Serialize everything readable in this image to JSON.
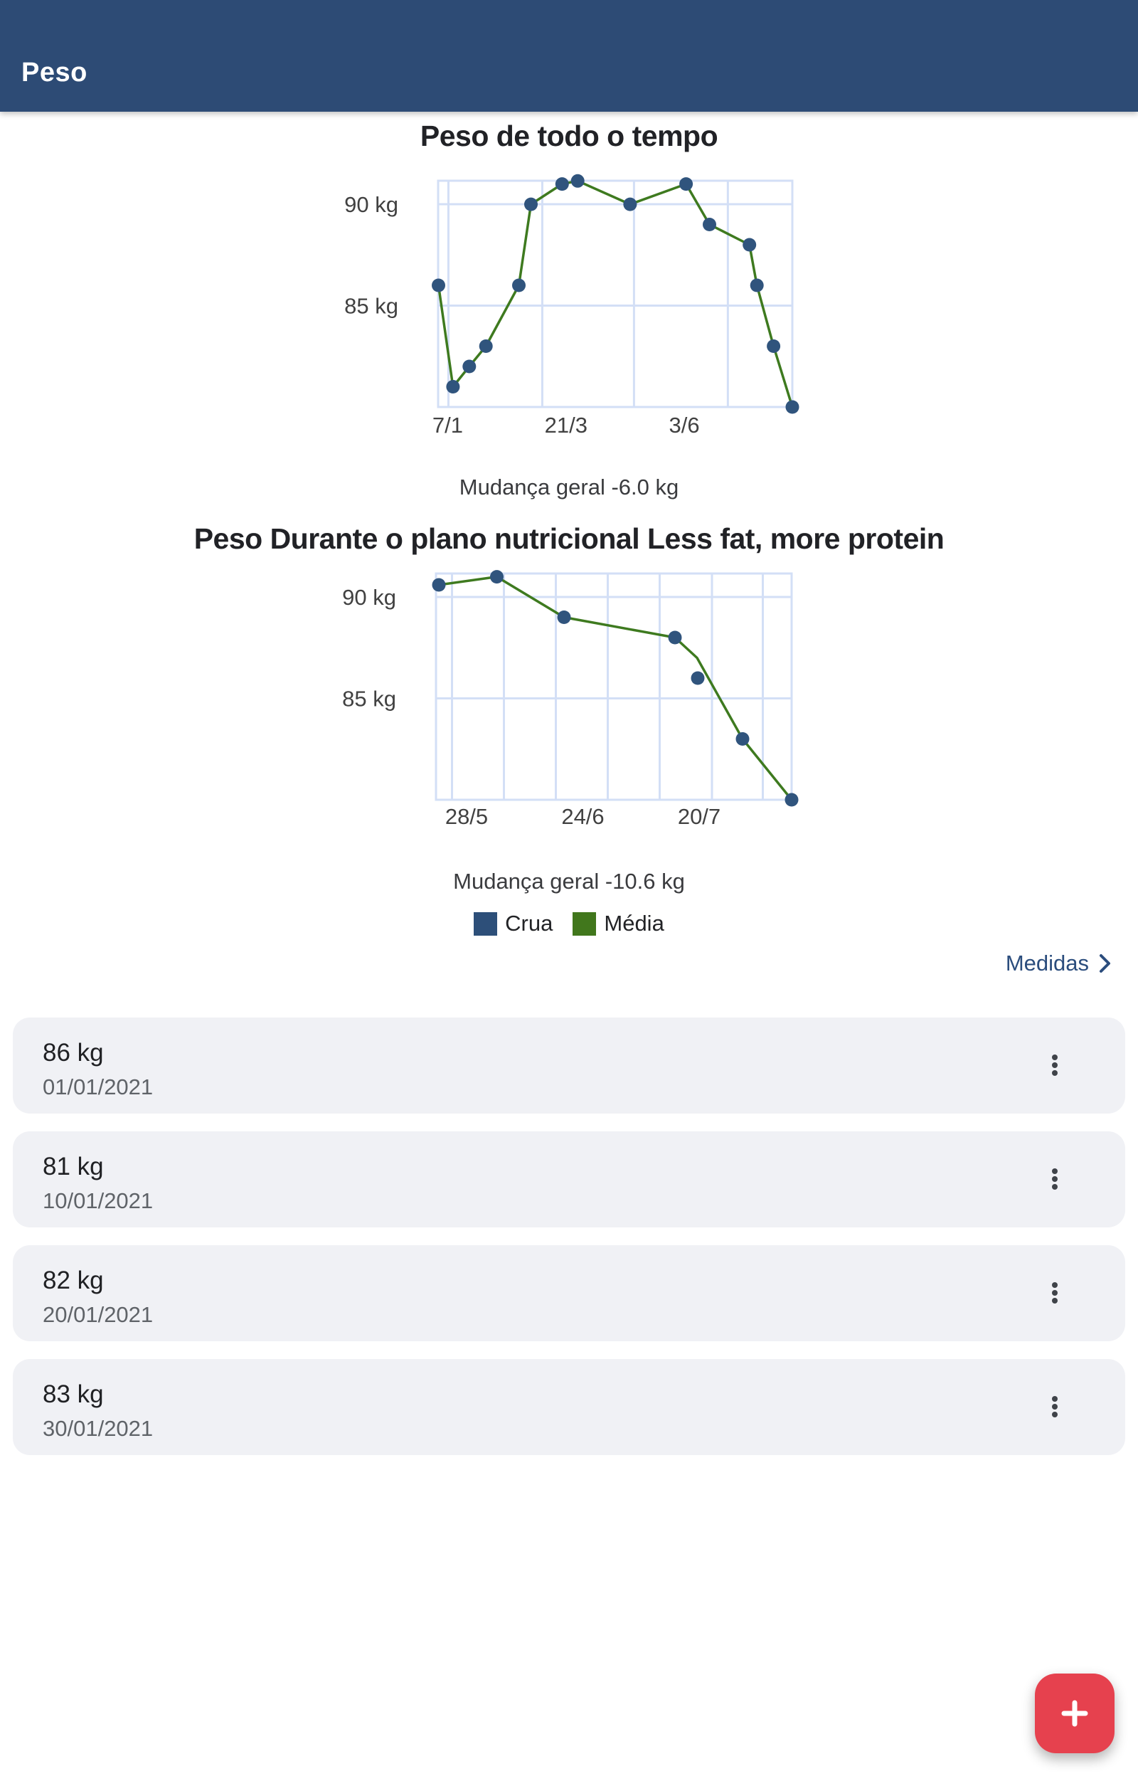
{
  "header": {
    "title": "Peso"
  },
  "colors": {
    "header_bg": "#2d4b75",
    "line_green": "#3e7a1f",
    "point_blue": "#30547d",
    "grid_blue": "#d3dff6",
    "axis_text": "#414141",
    "link_blue": "#2b4d7d",
    "fab_red": "#e6414e",
    "card_bg": "#f0f1f5"
  },
  "chart_data": [
    {
      "type": "line",
      "title": "Peso de todo o tempo",
      "change_label": "Mudança geral -6.0 kg",
      "ylim": [
        80,
        91.16
      ],
      "grid": true,
      "yticks": [
        {
          "kg": 90,
          "label": "90 kg"
        },
        {
          "kg": 85,
          "label": "85 kg"
        }
      ],
      "xticks": [
        {
          "pos": 0.027,
          "label": "7/1"
        },
        {
          "pos": 0.361,
          "label": "21/3"
        },
        {
          "pos": 0.695,
          "label": "3/6"
        }
      ],
      "xgrid": [
        0.029,
        0.294,
        0.553,
        0.818
      ],
      "points": [
        {
          "date": "1/1",
          "kg": 86,
          "x": 0.001
        },
        {
          "date": "10/1",
          "kg": 81,
          "x": 0.042
        },
        {
          "date": "20/1",
          "kg": 82,
          "x": 0.088
        },
        {
          "date": "30/1",
          "kg": 83,
          "x": 0.135
        },
        {
          "date": "20/2",
          "kg": 86,
          "x": 0.228
        },
        {
          "date": "27/2",
          "kg": 90,
          "x": 0.262
        },
        {
          "date": "19/3",
          "kg": 91,
          "x": 0.35
        },
        {
          "date": "28/3",
          "kg": 91.15,
          "x": 0.394
        },
        {
          "date": "30/4",
          "kg": 90,
          "x": 0.542
        },
        {
          "date": "4/6",
          "kg": 91,
          "x": 0.7
        },
        {
          "date": "19/6",
          "kg": 89,
          "x": 0.766
        },
        {
          "date": "13/7",
          "kg": 88,
          "x": 0.879
        },
        {
          "date": "18/7",
          "kg": 86,
          "x": 0.9
        },
        {
          "date": "28/7",
          "kg": 83,
          "x": 0.947
        },
        {
          "date": "9/8",
          "kg": 80,
          "x": 1.0
        }
      ]
    },
    {
      "type": "line",
      "title": "Peso Durante o plano nutricional Less fat, more protein",
      "change_label": "Mudança geral -10.6 kg",
      "ylim": [
        80,
        91.16
      ],
      "grid": true,
      "yticks": [
        {
          "kg": 90,
          "label": "90 kg"
        },
        {
          "kg": 85,
          "label": "85 kg"
        }
      ],
      "xticks": [
        {
          "pos": 0.086,
          "label": "28/5"
        },
        {
          "pos": 0.413,
          "label": "24/6"
        },
        {
          "pos": 0.74,
          "label": "20/7"
        }
      ],
      "xgrid": [
        0.045,
        0.191,
        0.337,
        0.483,
        0.629,
        0.776,
        0.919
      ],
      "points": [
        {
          "date": "21/5",
          "kg": 90.6,
          "x": 0.008
        },
        {
          "date": "4/6",
          "kg": 91,
          "x": 0.171
        },
        {
          "date": "19/6",
          "kg": 89,
          "x": 0.36
        },
        {
          "date": "15/7",
          "kg": 88,
          "x": 0.672
        },
        {
          "date": "20/7",
          "kg": 86,
          "x": 0.736
        },
        {
          "date": "30/7",
          "kg": 83,
          "x": 0.862
        },
        {
          "date": "10/8",
          "kg": 80,
          "x": 1.0
        }
      ],
      "avg_line": [
        {
          "x": 0.008,
          "kg": 90.6
        },
        {
          "x": 0.171,
          "kg": 91
        },
        {
          "x": 0.36,
          "kg": 89
        },
        {
          "x": 0.672,
          "kg": 88
        },
        {
          "x": 0.734,
          "kg": 87
        },
        {
          "x": 0.862,
          "kg": 83
        },
        {
          "x": 1.0,
          "kg": 80
        }
      ]
    }
  ],
  "legend": {
    "items": [
      {
        "label": "Crua",
        "color": "#2d4f79"
      },
      {
        "label": "Média",
        "color": "#41771c"
      }
    ]
  },
  "measurements": {
    "link_label": "Medidas",
    "items": [
      {
        "weight": "86 kg",
        "date": "01/01/2021"
      },
      {
        "weight": "81 kg",
        "date": "10/01/2021"
      },
      {
        "weight": "82 kg",
        "date": "20/01/2021"
      },
      {
        "weight": "83 kg",
        "date": "30/01/2021"
      }
    ]
  },
  "fab": {
    "label": "+"
  }
}
